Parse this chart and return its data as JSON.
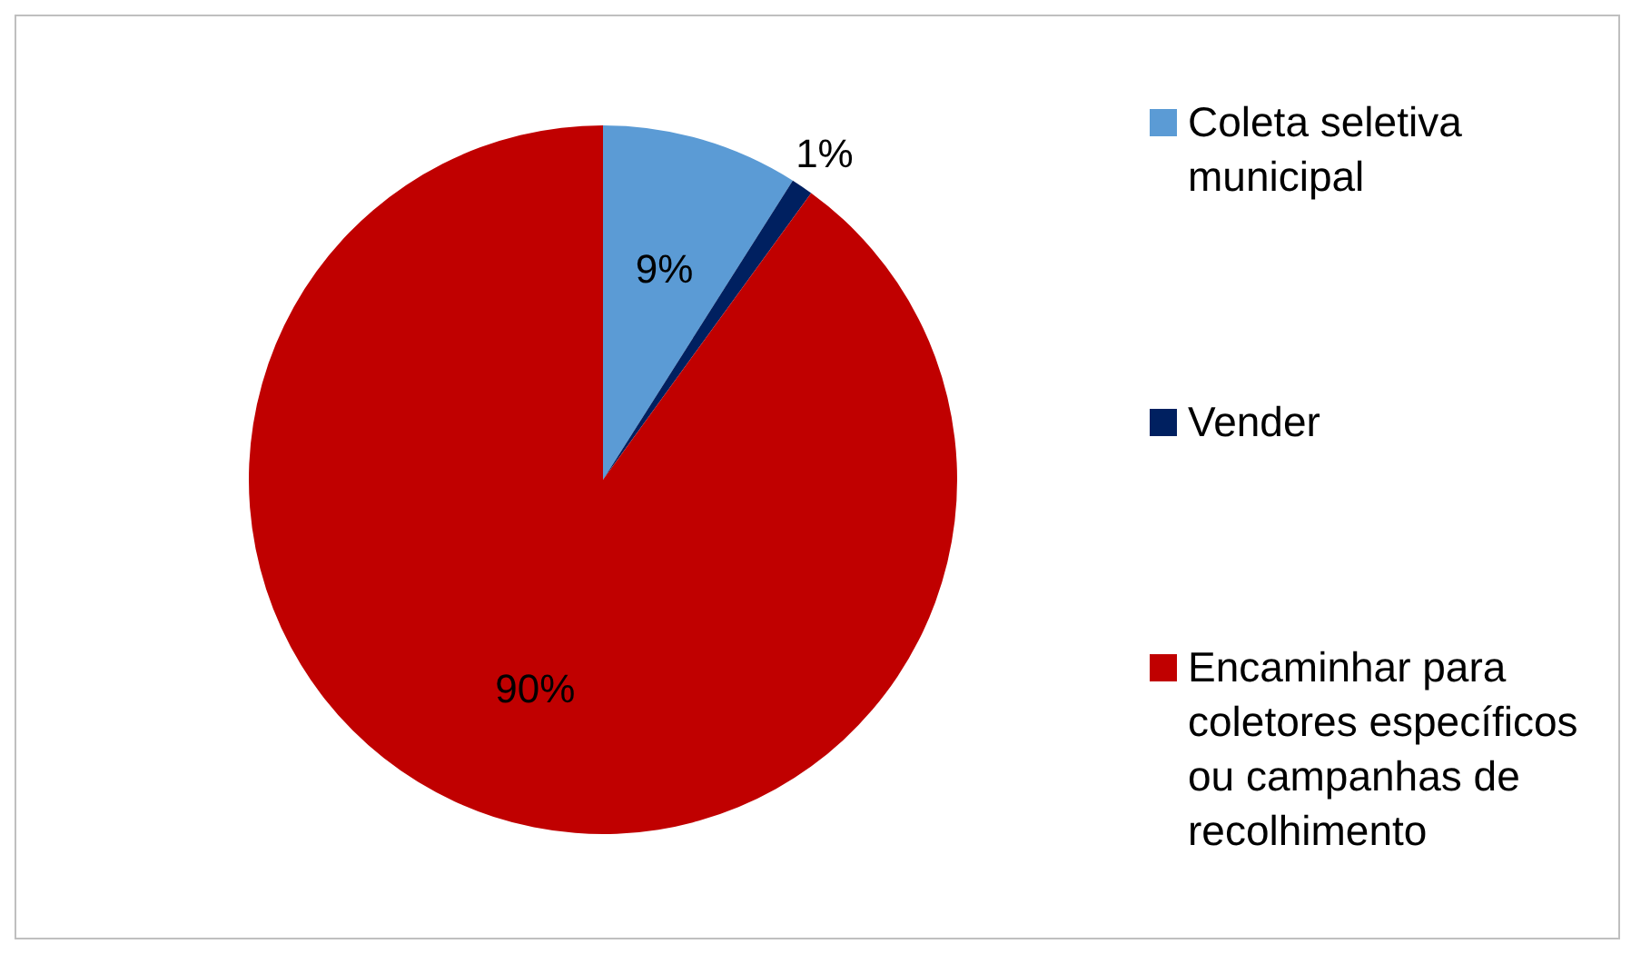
{
  "chart_data": {
    "type": "pie",
    "categories": [
      "Coleta seletiva municipal",
      "Vender",
      "Encaminhar para coletores específicos ou campanhas de recolhimento"
    ],
    "values": [
      9,
      1,
      90
    ],
    "colors": [
      "#5b9bd5",
      "#002060",
      "#c00000"
    ],
    "value_labels": [
      "9%",
      "1%",
      "90%"
    ],
    "legend": "right"
  }
}
